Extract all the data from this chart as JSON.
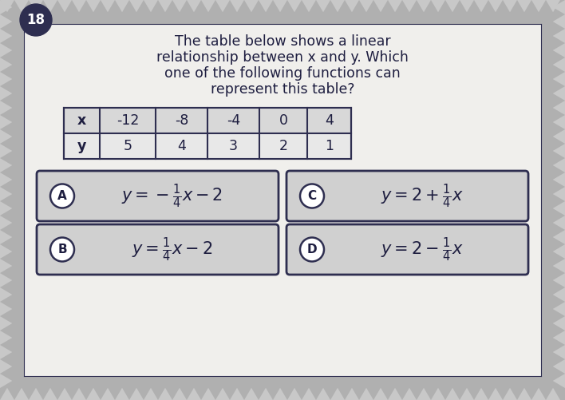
{
  "question_number": "18",
  "question_text_lines": [
    "The table below shows a linear",
    "relationship between x and y. Which",
    "one of the following functions can",
    "represent this table?"
  ],
  "table_x": [
    "x",
    "-12",
    "-8",
    "-4",
    "0",
    "4"
  ],
  "table_y": [
    "y",
    "5",
    "4",
    "3",
    "2",
    "1"
  ],
  "options": [
    {
      "label": "A",
      "formula": "$y = -\\frac{1}{4}x - 2$"
    },
    {
      "label": "C",
      "formula": "$y = 2 + \\frac{1}{4}x$"
    },
    {
      "label": "B",
      "formula": "$y = \\frac{1}{4}x - 2$"
    },
    {
      "label": "D",
      "formula": "$y = 2 - \\frac{1}{4}x$"
    }
  ],
  "bg_color": "#b0b0b0",
  "card_color": "#f0efec",
  "option_box_color": "#d0d0d0",
  "border_color": "#2e2e50",
  "text_color": "#1e1e40",
  "number_circle_color": "#2e2e50",
  "table_row1_color": "#d8d8d8",
  "table_row2_color": "#e8e8e8",
  "white": "#ffffff"
}
